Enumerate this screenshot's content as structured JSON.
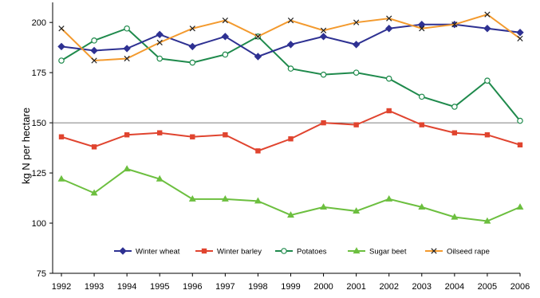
{
  "chart_data": {
    "type": "line",
    "title": "",
    "xlabel": "",
    "ylabel": "kg N per hectare",
    "x": [
      "1992",
      "1993",
      "1994",
      "1995",
      "1996",
      "1997",
      "1998",
      "1999",
      "2000",
      "2001",
      "2002",
      "2003",
      "2004",
      "2005",
      "2006"
    ],
    "ylim": [
      75,
      210
    ],
    "yticks": [
      75,
      100,
      125,
      150,
      175,
      200
    ],
    "reference_line": 150,
    "grid": false,
    "legend_position": "inside-bottom",
    "series": [
      {
        "name": "Winter wheat",
        "color": "#2e3192",
        "marker": "diamond",
        "values": [
          188,
          186,
          187,
          194,
          188,
          193,
          183,
          189,
          193,
          189,
          197,
          199,
          199,
          197,
          195
        ]
      },
      {
        "name": "Winter barley",
        "color": "#e0442f",
        "marker": "square",
        "values": [
          143,
          138,
          144,
          145,
          143,
          144,
          136,
          142,
          150,
          149,
          156,
          149,
          145,
          144,
          139
        ]
      },
      {
        "name": "Potatoes",
        "color": "#1f8a4c",
        "marker": "circle",
        "values": [
          181,
          191,
          197,
          182,
          180,
          184,
          193,
          177,
          174,
          175,
          172,
          163,
          158,
          171,
          151
        ]
      },
      {
        "name": "Sugar beet",
        "color": "#6cbf3f",
        "marker": "triangle",
        "values": [
          122,
          115,
          127,
          122,
          112,
          112,
          111,
          104,
          108,
          106,
          112,
          108,
          103,
          101,
          108
        ]
      },
      {
        "name": "Oilseed rape",
        "color": "#f39a2e",
        "marker": "x",
        "values": [
          197,
          181,
          182,
          190,
          197,
          201,
          193,
          201,
          196,
          200,
          202,
          197,
          199,
          204,
          192
        ]
      }
    ]
  }
}
